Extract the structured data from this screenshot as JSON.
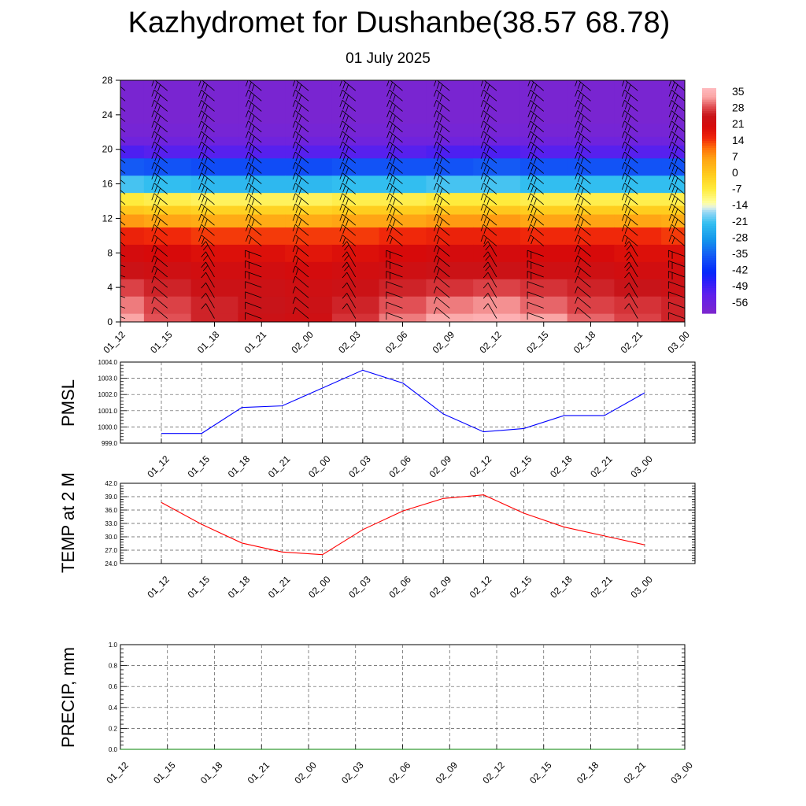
{
  "title": "Kazhydromet for Dushanbe(38.57 68.78)",
  "subtitle": "01 July 2025",
  "chart_data": [
    {
      "type": "heatmap",
      "x": [
        "01_12",
        "01_15",
        "01_18",
        "01_21",
        "02_00",
        "02_03",
        "02_06",
        "02_09",
        "02_12",
        "02_15",
        "02_18",
        "02_21",
        "03_00"
      ],
      "y_ticks": [
        0,
        4,
        8,
        12,
        16,
        20,
        24,
        28
      ],
      "ylim": [
        0,
        28
      ],
      "colorbar": {
        "labels": [
          "35",
          "28",
          "21",
          "14",
          "7",
          "0",
          "-7",
          "-14",
          "-21",
          "-28",
          "-35",
          "-42",
          "-49",
          "-56"
        ],
        "range": [
          -60,
          38
        ]
      },
      "band_values": {
        "levels": [
          0,
          2,
          4,
          6,
          8,
          10,
          12,
          13,
          14,
          16,
          18,
          20,
          21,
          22,
          24,
          28
        ],
        "columns": [
          [
            34,
            32,
            29,
            25,
            22,
            17,
            8,
            1,
            -6,
            -20,
            -35,
            -50,
            -56,
            -58,
            -59,
            -59
          ],
          [
            30,
            29,
            27,
            24,
            21,
            16,
            7,
            0,
            -7,
            -21,
            -36,
            -51,
            -56,
            -58,
            -59,
            -59
          ],
          [
            27,
            27,
            25,
            23,
            20,
            15,
            6,
            -1,
            -8,
            -22,
            -37,
            -51,
            -56,
            -58,
            -59,
            -59
          ],
          [
            25,
            26,
            25,
            23,
            20,
            15,
            6,
            -1,
            -8,
            -22,
            -37,
            -51,
            -56,
            -58,
            -59,
            -59
          ],
          [
            24,
            25,
            24,
            22,
            19,
            15,
            6,
            -1,
            -8,
            -22,
            -37,
            -51,
            -56,
            -58,
            -59,
            -59
          ],
          [
            28,
            27,
            25,
            23,
            20,
            15,
            7,
            0,
            -7,
            -21,
            -36,
            -51,
            -56,
            -58,
            -59,
            -59
          ],
          [
            32,
            30,
            27,
            24,
            21,
            16,
            7,
            0,
            -7,
            -21,
            -36,
            -51,
            -56,
            -58,
            -59,
            -59
          ],
          [
            35,
            32,
            28,
            25,
            22,
            17,
            8,
            1,
            -6,
            -20,
            -36,
            -50,
            -56,
            -58,
            -59,
            -59
          ],
          [
            36,
            33,
            29,
            25,
            22,
            17,
            8,
            1,
            -6,
            -20,
            -35,
            -50,
            -56,
            -58,
            -59,
            -59
          ],
          [
            34,
            31,
            28,
            24,
            21,
            16,
            7,
            0,
            -7,
            -21,
            -36,
            -51,
            -56,
            -58,
            -59,
            -59
          ],
          [
            31,
            29,
            27,
            24,
            21,
            16,
            7,
            0,
            -7,
            -21,
            -36,
            -51,
            -56,
            -58,
            -59,
            -59
          ],
          [
            29,
            28,
            26,
            23,
            20,
            16,
            7,
            0,
            -7,
            -21,
            -36,
            -51,
            -56,
            -58,
            -59,
            -59
          ],
          [
            27,
            27,
            25,
            23,
            20,
            15,
            6,
            0,
            -7,
            -21,
            -36,
            -51,
            -56,
            -58,
            -59,
            -59
          ]
        ]
      },
      "wind_barbs": true
    },
    {
      "type": "line",
      "ylabel": "PMSL",
      "x": [
        "01_12",
        "01_15",
        "01_18",
        "01_21",
        "02_00",
        "02_03",
        "02_06",
        "02_09",
        "02_12",
        "02_15",
        "02_18",
        "02_21",
        "03_00"
      ],
      "values": [
        999.6,
        999.6,
        1001.2,
        1001.3,
        1002.4,
        1003.5,
        1002.7,
        1000.8,
        999.7,
        999.9,
        1000.7,
        1000.7,
        1002.1
      ],
      "ylim": [
        999.0,
        1004.0
      ],
      "y_ticks": [
        "999.0",
        "1000.0",
        "1001.0",
        "1002.0",
        "1003.0",
        "1004.0"
      ],
      "color": "#0000ff",
      "grid": true
    },
    {
      "type": "line",
      "ylabel": "TEMP at 2 M",
      "x": [
        "01_12",
        "01_15",
        "01_18",
        "01_21",
        "02_00",
        "02_03",
        "02_06",
        "02_09",
        "02_12",
        "02_15",
        "02_18",
        "02_21",
        "03_00"
      ],
      "values": [
        37.7,
        32.8,
        28.6,
        26.6,
        26.0,
        31.6,
        35.8,
        38.6,
        39.4,
        35.3,
        32.2,
        30.2,
        28.2
      ],
      "ylim": [
        24.0,
        42.0
      ],
      "y_ticks": [
        "24.0",
        "27.0",
        "30.0",
        "33.0",
        "36.0",
        "39.0",
        "42.0"
      ],
      "color": "#ff0000",
      "grid": true
    },
    {
      "type": "line",
      "ylabel": "PRECIP, mm",
      "x": [
        "01_12",
        "01_15",
        "01_18",
        "01_21",
        "02_00",
        "02_03",
        "02_06",
        "02_09",
        "02_12",
        "02_15",
        "02_18",
        "02_21",
        "03_00"
      ],
      "values": [
        0,
        0,
        0,
        0,
        0,
        0,
        0,
        0,
        0,
        0,
        0,
        0,
        0
      ],
      "ylim": [
        0.0,
        1.0
      ],
      "y_ticks": [
        "0.0",
        "0.2",
        "0.4",
        "0.6",
        "0.8",
        "1.0"
      ],
      "color": "#008000",
      "grid": true
    }
  ]
}
